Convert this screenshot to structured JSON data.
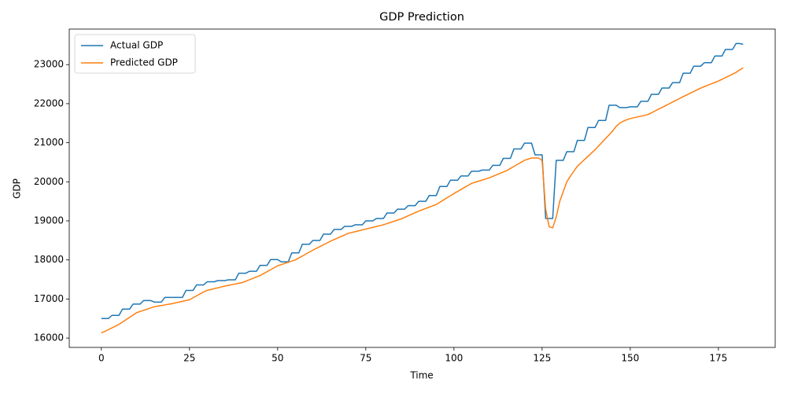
{
  "chart_data": {
    "type": "line",
    "title": "GDP Prediction",
    "xlabel": "Time",
    "ylabel": "GDP",
    "x": [
      0,
      1,
      2,
      3,
      4,
      5,
      6,
      7,
      8,
      9,
      10,
      11,
      12,
      13,
      14,
      15,
      16,
      17,
      18,
      19,
      20,
      21,
      22,
      23,
      24,
      25,
      26,
      27,
      28,
      29,
      30,
      31,
      32,
      33,
      34,
      35,
      36,
      37,
      38,
      39,
      40,
      41,
      42,
      43,
      44,
      45,
      46,
      47,
      48,
      49,
      50,
      51,
      52,
      53,
      54,
      55,
      56,
      57,
      58,
      59,
      60,
      61,
      62,
      63,
      64,
      65,
      66,
      67,
      68,
      69,
      70,
      71,
      72,
      73,
      74,
      75,
      76,
      77,
      78,
      79,
      80,
      81,
      82,
      83,
      84,
      85,
      86,
      87,
      88,
      89,
      90,
      91,
      92,
      93,
      94,
      95,
      96,
      97,
      98,
      99,
      100,
      101,
      102,
      103,
      104,
      105,
      106,
      107,
      108,
      109,
      110,
      111,
      112,
      113,
      114,
      115,
      116,
      117,
      118,
      119,
      120,
      121,
      122,
      123,
      124,
      125,
      126,
      127,
      128,
      129,
      130,
      131,
      132,
      133,
      134,
      135,
      136,
      137,
      138,
      139,
      140,
      141,
      142,
      143,
      144,
      145,
      146,
      147,
      148,
      149,
      150,
      151,
      152,
      153,
      154,
      155,
      156,
      157,
      158,
      159,
      160,
      161,
      162,
      163,
      164,
      165,
      166,
      167,
      168,
      169,
      170,
      171,
      172,
      173,
      174,
      175,
      176,
      177,
      178,
      179,
      180,
      181,
      182
    ],
    "series": [
      {
        "name": "Actual GDP",
        "color": "#1f77b4",
        "values": [
          16500,
          16500,
          16500,
          16580,
          16580,
          16580,
          16740,
          16740,
          16740,
          16870,
          16870,
          16870,
          16960,
          16960,
          16960,
          16920,
          16920,
          16920,
          17040,
          17040,
          17040,
          17040,
          17040,
          17040,
          17220,
          17220,
          17220,
          17360,
          17360,
          17360,
          17440,
          17440,
          17440,
          17470,
          17470,
          17470,
          17490,
          17490,
          17490,
          17660,
          17660,
          17660,
          17710,
          17710,
          17710,
          17860,
          17860,
          17860,
          18010,
          18010,
          18010,
          17950,
          17950,
          17950,
          18180,
          18180,
          18180,
          18400,
          18400,
          18400,
          18500,
          18500,
          18500,
          18660,
          18660,
          18660,
          18780,
          18780,
          18780,
          18860,
          18860,
          18860,
          18900,
          18900,
          18900,
          19000,
          19000,
          19000,
          19060,
          19060,
          19060,
          19200,
          19200,
          19200,
          19300,
          19300,
          19300,
          19390,
          19390,
          19390,
          19500,
          19500,
          19500,
          19650,
          19650,
          19650,
          19880,
          19880,
          19880,
          20040,
          20040,
          20040,
          20150,
          20150,
          20150,
          20270,
          20270,
          20270,
          20300,
          20300,
          20300,
          20420,
          20420,
          20420,
          20600,
          20600,
          20600,
          20840,
          20840,
          20840,
          20990,
          20990,
          20990,
          20690,
          20690,
          20690,
          19060,
          19060,
          19060,
          20550,
          20550,
          20550,
          20770,
          20770,
          20770,
          21060,
          21060,
          21060,
          21390,
          21390,
          21390,
          21570,
          21570,
          21570,
          21960,
          21960,
          21960,
          21900,
          21900,
          21900,
          21920,
          21920,
          21920,
          22060,
          22060,
          22060,
          22240,
          22240,
          22240,
          22400,
          22400,
          22400,
          22540,
          22540,
          22540,
          22780,
          22780,
          22780,
          22960,
          22960,
          22960,
          23050,
          23050,
          23050,
          23220,
          23220,
          23220,
          23390,
          23390,
          23390,
          23540,
          23540,
          23520
        ]
      },
      {
        "name": "Predicted GDP",
        "color": "#ff7f0e",
        "values": [
          16130,
          16170,
          16215,
          16260,
          16305,
          16350,
          16410,
          16470,
          16530,
          16590,
          16650,
          16680,
          16710,
          16740,
          16770,
          16800,
          16816,
          16832,
          16848,
          16864,
          16880,
          16900,
          16920,
          16940,
          16960,
          16980,
          17030,
          17080,
          17130,
          17180,
          17220,
          17242,
          17264,
          17286,
          17308,
          17330,
          17348,
          17366,
          17384,
          17402,
          17420,
          17456,
          17492,
          17528,
          17564,
          17600,
          17650,
          17700,
          17750,
          17800,
          17850,
          17880,
          17910,
          17940,
          17970,
          18000,
          18050,
          18100,
          18150,
          18200,
          18250,
          18296,
          18342,
          18388,
          18434,
          18480,
          18520,
          18560,
          18600,
          18640,
          18680,
          18702,
          18724,
          18746,
          18768,
          18790,
          18812,
          18834,
          18856,
          18878,
          18900,
          18930,
          18960,
          18990,
          19020,
          19050,
          19090,
          19130,
          19170,
          19210,
          19250,
          19284,
          19318,
          19352,
          19386,
          19420,
          19476,
          19532,
          19588,
          19644,
          19700,
          19752,
          19804,
          19856,
          19908,
          19960,
          19988,
          20016,
          20044,
          20072,
          20100,
          20138,
          20176,
          20214,
          20252,
          20290,
          20342,
          20394,
          20446,
          20498,
          20550,
          20580,
          20610,
          20610,
          20610,
          20540,
          19300,
          18850,
          18820,
          19100,
          19500,
          19750,
          20000,
          20140,
          20270,
          20400,
          20484,
          20568,
          20652,
          20736,
          20820,
          20916,
          21012,
          21108,
          21204,
          21300,
          21420,
          21500,
          21550,
          21590,
          21620,
          21640,
          21660,
          21680,
          21700,
          21720,
          21766,
          21812,
          21858,
          21904,
          21950,
          21996,
          22042,
          22088,
          22134,
          22180,
          22224,
          22268,
          22312,
          22356,
          22400,
          22436,
          22472,
          22508,
          22544,
          22580,
          22624,
          22668,
          22712,
          22756,
          22800,
          22860,
          22920
        ]
      }
    ],
    "xlim": [
      -9.1,
      191.1
    ],
    "ylim": [
      15760,
      23910
    ],
    "xticks": [
      0,
      25,
      50,
      75,
      100,
      125,
      150,
      175
    ],
    "yticks": [
      16000,
      17000,
      18000,
      19000,
      20000,
      21000,
      22000,
      23000
    ],
    "legend": "upper left"
  }
}
